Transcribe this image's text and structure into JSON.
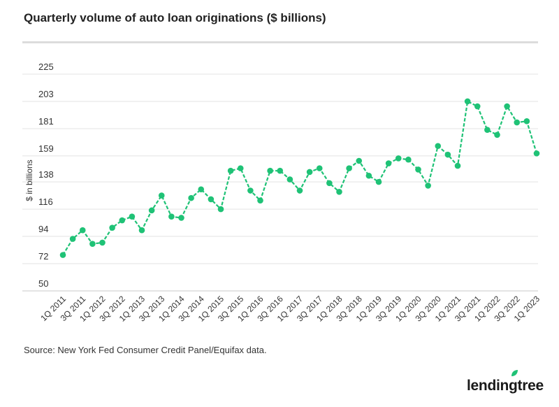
{
  "chart_data": {
    "type": "line",
    "title": "Quarterly volume of auto loan originations ($ billions)",
    "ylabel": "$ in billions",
    "xlabel": "",
    "ylim": [
      50,
      225
    ],
    "yticks": [
      50,
      72,
      94,
      116,
      138,
      159,
      181,
      203,
      225
    ],
    "x_tick_labels": [
      "1Q 2011",
      "3Q 2011",
      "1Q 2012",
      "3Q 2012",
      "1Q 2013",
      "3Q 2013",
      "1Q 2014",
      "3Q 2014",
      "1Q 2015",
      "3Q 2015",
      "1Q 2016",
      "3Q 2016",
      "1Q 2017",
      "3Q 2017",
      "1Q 2018",
      "3Q 2018",
      "1Q 2019",
      "3Q 2019",
      "1Q 2020",
      "3Q 2020",
      "1Q 2021",
      "3Q 2021",
      "1Q 2022",
      "3Q 2022",
      "1Q 2023"
    ],
    "categories": [
      "1Q 2011",
      "2Q 2011",
      "3Q 2011",
      "4Q 2011",
      "1Q 2012",
      "2Q 2012",
      "3Q 2012",
      "4Q 2012",
      "1Q 2013",
      "2Q 2013",
      "3Q 2013",
      "4Q 2013",
      "1Q 2014",
      "2Q 2014",
      "3Q 2014",
      "4Q 2014",
      "1Q 2015",
      "2Q 2015",
      "3Q 2015",
      "4Q 2015",
      "1Q 2016",
      "2Q 2016",
      "3Q 2016",
      "4Q 2016",
      "1Q 2017",
      "2Q 2017",
      "3Q 2017",
      "4Q 2017",
      "1Q 2018",
      "2Q 2018",
      "3Q 2018",
      "4Q 2018",
      "1Q 2019",
      "2Q 2019",
      "3Q 2019",
      "4Q 2019",
      "1Q 2020",
      "2Q 2020",
      "3Q 2020",
      "4Q 2020",
      "1Q 2021",
      "2Q 2021",
      "3Q 2021",
      "4Q 2021",
      "1Q 2022",
      "2Q 2022",
      "3Q 2022",
      "4Q 2022",
      "1Q 2023"
    ],
    "series": [
      {
        "values": [
          79,
          92,
          99,
          88,
          89,
          101,
          107,
          110,
          99,
          115,
          127,
          110,
          109,
          125,
          132,
          124,
          116,
          147,
          149,
          131,
          123,
          147,
          147,
          140,
          131,
          146,
          149,
          137,
          130,
          149,
          155,
          143,
          138,
          153,
          157,
          156,
          148,
          135,
          167,
          160,
          151,
          203,
          199,
          180,
          176,
          199,
          186,
          187,
          161
        ],
        "color": "#1fc276"
      }
    ],
    "grid": true,
    "legend": "none"
  },
  "source": "Source: New York Fed Consumer Credit Panel/Equifax data.",
  "logo": {
    "text": "lendingtree",
    "color": "#1fc276"
  }
}
